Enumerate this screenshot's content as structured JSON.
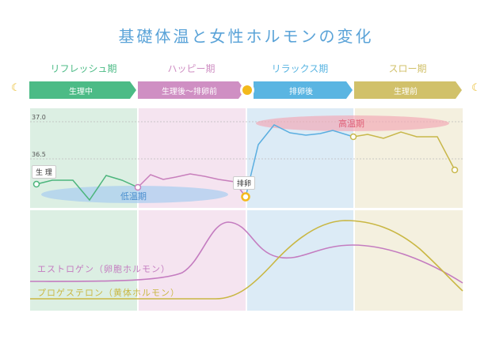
{
  "title": "基礎体温と女性ホルモンの変化",
  "phases": [
    {
      "name": "リフレッシュ期",
      "bar": "生理中",
      "color": "#4cbb86"
    },
    {
      "name": "ハッピー期",
      "bar": "生理後～排卵前",
      "color": "#cf8fc3"
    },
    {
      "name": "リラックス期",
      "bar": "排卵後",
      "color": "#5ab5e2"
    },
    {
      "name": "スロー期",
      "bar": "生理前",
      "color": "#d1c16a"
    }
  ],
  "temp_axis": {
    "t37": "37.0",
    "t365": "36.5"
  },
  "tags": {
    "period": "生 理",
    "ovulation": "排卵"
  },
  "ellipses": {
    "low": "低温期",
    "high": "高温期"
  },
  "hormones": {
    "estrogen": {
      "label": "エストロゲン（卵胞ホルモン）",
      "color": "#c47cc0"
    },
    "progesterone": {
      "label": "プロゲステロン（黄体ホルモン）",
      "color": "#c9b743"
    }
  },
  "colors": {
    "green_bg": "#dcefe3",
    "pink_bg": "#f5e4f0",
    "blue_bg": "#dcebf6",
    "yellow_bg": "#f4f0df",
    "temp_green": "#4cb57c",
    "temp_pink": "#c87fbc",
    "temp_blue": "#5aaee0",
    "temp_yellow": "#c8b74a"
  }
}
